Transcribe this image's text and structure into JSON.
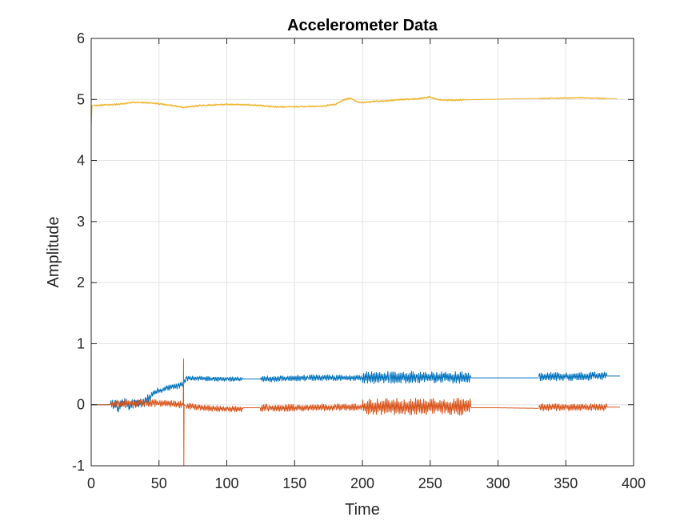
{
  "chart_data": {
    "type": "line",
    "title": "Accelerometer Data",
    "xlabel": "Time",
    "ylabel": "Amplitude",
    "xlim": [
      0,
      400
    ],
    "ylim": [
      -1,
      6
    ],
    "xticks": [
      "0",
      "50",
      "100",
      "150",
      "200",
      "250",
      "300",
      "350",
      "400"
    ],
    "yticks": [
      "-1",
      "0",
      "1",
      "2",
      "3",
      "4",
      "5",
      "6"
    ],
    "grid": true,
    "legend": "none",
    "colors": [
      "#0072BD",
      "#D95319",
      "#EDB120"
    ],
    "series": [
      {
        "color": "#0072BD",
        "segments": [
          {
            "x": [
              0,
              14
            ],
            "y": [
              0.0,
              0.0
            ]
          },
          {
            "x": [
              14,
              17,
              20,
              24,
              28,
              32,
              36,
              40,
              44,
              48,
              52,
              56,
              60,
              64,
              68,
              70,
              74,
              80,
              90,
              100,
              112
            ],
            "y": [
              0.0,
              0.02,
              -0.05,
              0.05,
              -0.02,
              0.03,
              0.01,
              0.05,
              0.15,
              0.22,
              0.24,
              0.27,
              0.29,
              0.31,
              0.34,
              0.43,
              0.44,
              0.43,
              0.42,
              0.42,
              0.42
            ]
          },
          {
            "x": [
              112,
              125,
              140,
              160,
              180,
              200,
              220,
              240,
              260,
              280
            ],
            "y": [
              0.42,
              0.42,
              0.43,
              0.44,
              0.44,
              0.44,
              0.45,
              0.45,
              0.45,
              0.44
            ]
          },
          {
            "x": [
              280,
              300,
              330
            ],
            "y": [
              0.44,
              0.44,
              0.44
            ]
          },
          {
            "x": [
              330,
              350,
              370,
              390
            ],
            "y": [
              0.46,
              0.46,
              0.47,
              0.47
            ]
          }
        ],
        "noise": [
          {
            "x_start": 14,
            "x_end": 44,
            "amp": 0.08
          },
          {
            "x_start": 44,
            "x_end": 68,
            "amp": 0.05
          },
          {
            "x_start": 68,
            "x_end": 112,
            "amp": 0.04
          },
          {
            "x_start": 125,
            "x_end": 200,
            "amp": 0.05
          },
          {
            "x_start": 200,
            "x_end": 280,
            "amp": 0.1
          },
          {
            "x_start": 330,
            "x_end": 380,
            "amp": 0.07
          }
        ]
      },
      {
        "color": "#D95319",
        "segments": [
          {
            "x": [
              0,
              14
            ],
            "y": [
              0.0,
              0.0
            ]
          },
          {
            "x": [
              14,
              20,
              30,
              40,
              50,
              60,
              67.9,
              68.1,
              68.3,
              68.5,
              70,
              80,
              90,
              100,
              112
            ],
            "y": [
              0.0,
              0.02,
              0.02,
              0.03,
              0.03,
              0.02,
              0.0,
              0.75,
              -1.0,
              0.0,
              -0.02,
              -0.05,
              -0.06,
              -0.07,
              -0.07
            ]
          },
          {
            "x": [
              112,
              130,
              150,
              180,
              200,
              230,
              260,
              280
            ],
            "y": [
              -0.05,
              -0.05,
              -0.05,
              -0.04,
              -0.04,
              -0.03,
              -0.03,
              -0.04
            ]
          },
          {
            "x": [
              280,
              300,
              330
            ],
            "y": [
              -0.05,
              -0.05,
              -0.06
            ]
          },
          {
            "x": [
              330,
              350,
              370,
              390
            ],
            "y": [
              -0.04,
              -0.04,
              -0.04,
              -0.04
            ]
          }
        ],
        "noise": [
          {
            "x_start": 14,
            "x_end": 67,
            "amp": 0.06
          },
          {
            "x_start": 70,
            "x_end": 112,
            "amp": 0.05
          },
          {
            "x_start": 125,
            "x_end": 200,
            "amp": 0.06
          },
          {
            "x_start": 200,
            "x_end": 280,
            "amp": 0.14
          },
          {
            "x_start": 330,
            "x_end": 380,
            "amp": 0.06
          }
        ]
      },
      {
        "color": "#EDB120",
        "segments": [
          {
            "x": [
              0,
              0.3,
              0.6,
              2,
              10,
              20,
              30,
              40,
              50,
              60,
              68,
              80,
              100,
              120,
              135,
              150,
              170,
              180,
              188,
              192,
              196,
              200,
              210,
              220,
              230,
              240,
              250,
              255,
              260,
              270,
              290,
              310,
              340,
              360,
              388
            ],
            "y": [
              4.55,
              4.7,
              4.9,
              4.9,
              4.91,
              4.92,
              4.95,
              4.95,
              4.93,
              4.9,
              4.87,
              4.9,
              4.92,
              4.91,
              4.88,
              4.88,
              4.89,
              4.92,
              5.01,
              5.02,
              4.96,
              4.95,
              4.97,
              4.98,
              5.0,
              5.01,
              5.04,
              5.0,
              4.99,
              4.99,
              5.0,
              5.01,
              5.02,
              5.03,
              5.01
            ]
          }
        ],
        "noise": [
          {
            "x_start": 2,
            "x_end": 275,
            "amp": 0.015
          },
          {
            "x_start": 330,
            "x_end": 380,
            "amp": 0.012
          }
        ]
      }
    ]
  }
}
